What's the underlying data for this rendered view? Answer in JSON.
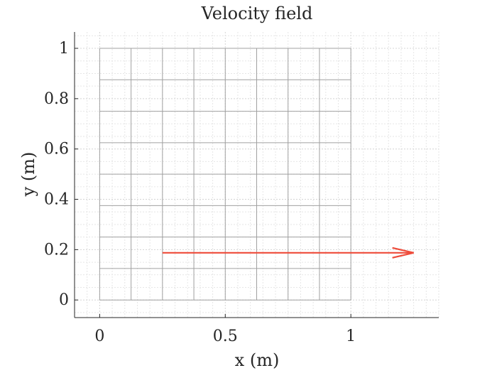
{
  "chart_data": {
    "type": "quiver",
    "title": "Velocity field",
    "xlabel": "x (m)",
    "ylabel": "y (m)",
    "xlim": [
      -0.1,
      1.35
    ],
    "ylim": [
      -0.07,
      1.065
    ],
    "xticks": [
      0,
      0.5,
      1
    ],
    "xtick_labels": [
      "0",
      "0.5",
      "1"
    ],
    "yticks": [
      0,
      0.2,
      0.4,
      0.6,
      0.8,
      1
    ],
    "ytick_labels": [
      "0",
      "0.2",
      "0.4",
      "0.6",
      "0.8",
      "1"
    ],
    "grid": "major and minor, dotted",
    "mesh": {
      "x_lines": [
        0,
        0.125,
        0.25,
        0.375,
        0.5,
        0.625,
        0.75,
        0.875,
        1
      ],
      "y_lines": [
        0,
        0.125,
        0.25,
        0.375,
        0.5,
        0.625,
        0.75,
        0.875,
        1
      ],
      "x_range": [
        0,
        1
      ],
      "y_range": [
        0,
        1
      ],
      "color": "#a0a0a0"
    },
    "vectors": [
      {
        "x": 0.25,
        "y": 0.1875,
        "u": 1.0,
        "v": 0.0,
        "color": "#ee4b3a"
      }
    ]
  }
}
